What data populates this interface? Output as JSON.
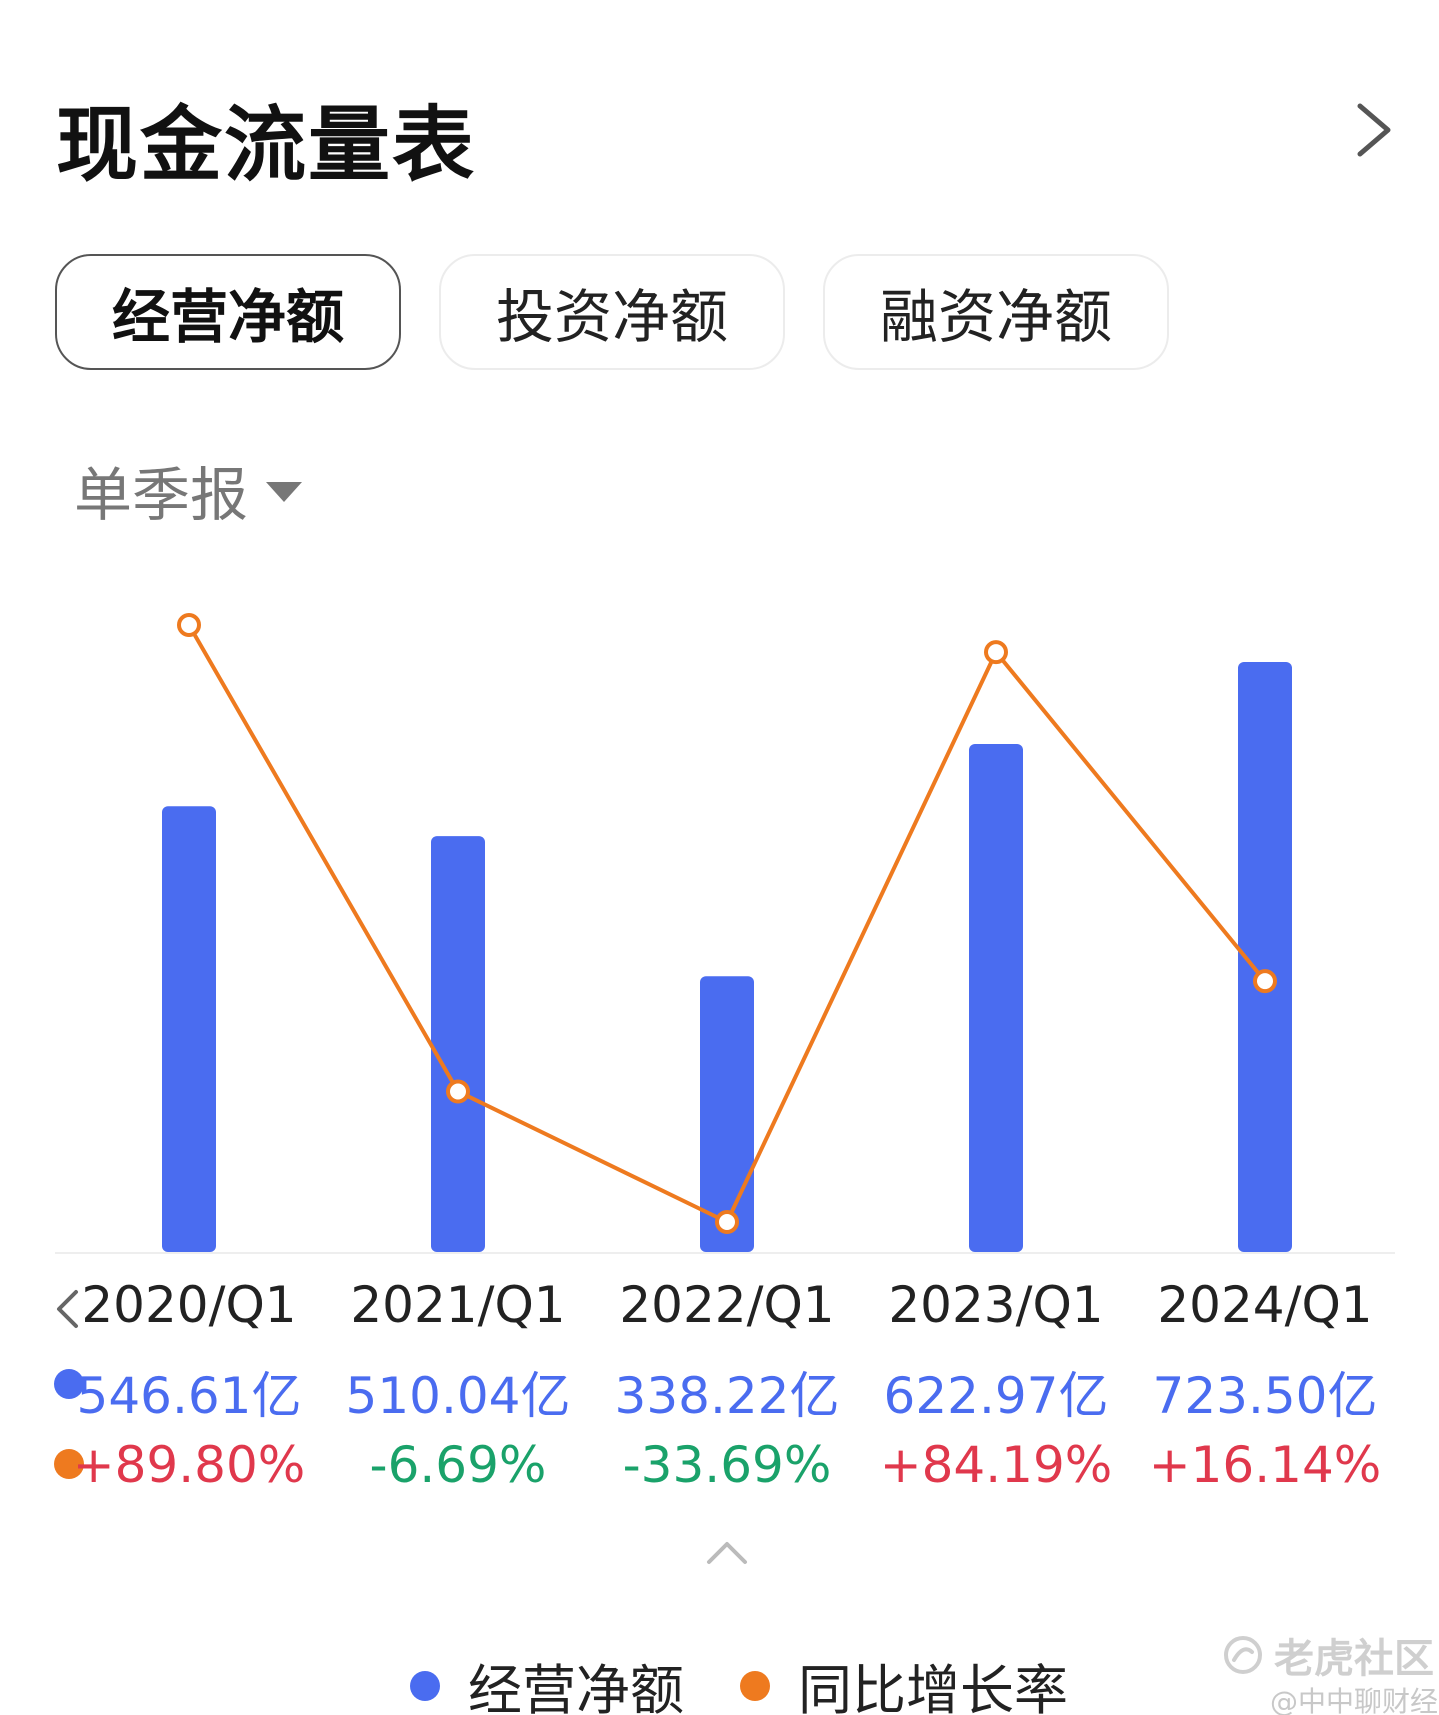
{
  "header": {
    "title": "现金流量表"
  },
  "tabs": [
    {
      "label": "经营净额",
      "active": true
    },
    {
      "label": "投资净额",
      "active": false
    },
    {
      "label": "融资净额",
      "active": false
    }
  ],
  "period": {
    "label": "单季报"
  },
  "colors": {
    "bar": "#4a6cf0",
    "line": "#ee7a1f",
    "positive": "#e0384c",
    "negative": "#1aa26a"
  },
  "chart_data": {
    "type": "bar",
    "categories": [
      "2020/Q1",
      "2021/Q1",
      "2022/Q1",
      "2023/Q1",
      "2024/Q1"
    ],
    "series": [
      {
        "name": "经营净额",
        "type": "bar",
        "values": [
          546.61,
          510.04,
          338.22,
          622.97,
          723.5
        ],
        "labels": [
          "546.61亿",
          "510.04亿",
          "338.22亿",
          "622.97亿",
          "723.50亿"
        ]
      },
      {
        "name": "同比增长率",
        "type": "line",
        "values": [
          89.8,
          -6.69,
          -33.69,
          84.19,
          16.14
        ],
        "labels": [
          "+89.80%",
          "-6.69%",
          "-33.69%",
          "+84.19%",
          "+16.14%"
        ]
      }
    ],
    "legend": [
      "经营净额",
      "同比增长率"
    ],
    "legend_position": "bottom",
    "grid": false
  },
  "watermark": {
    "brand": "老虎社区",
    "author": "@中中聊财经"
  }
}
